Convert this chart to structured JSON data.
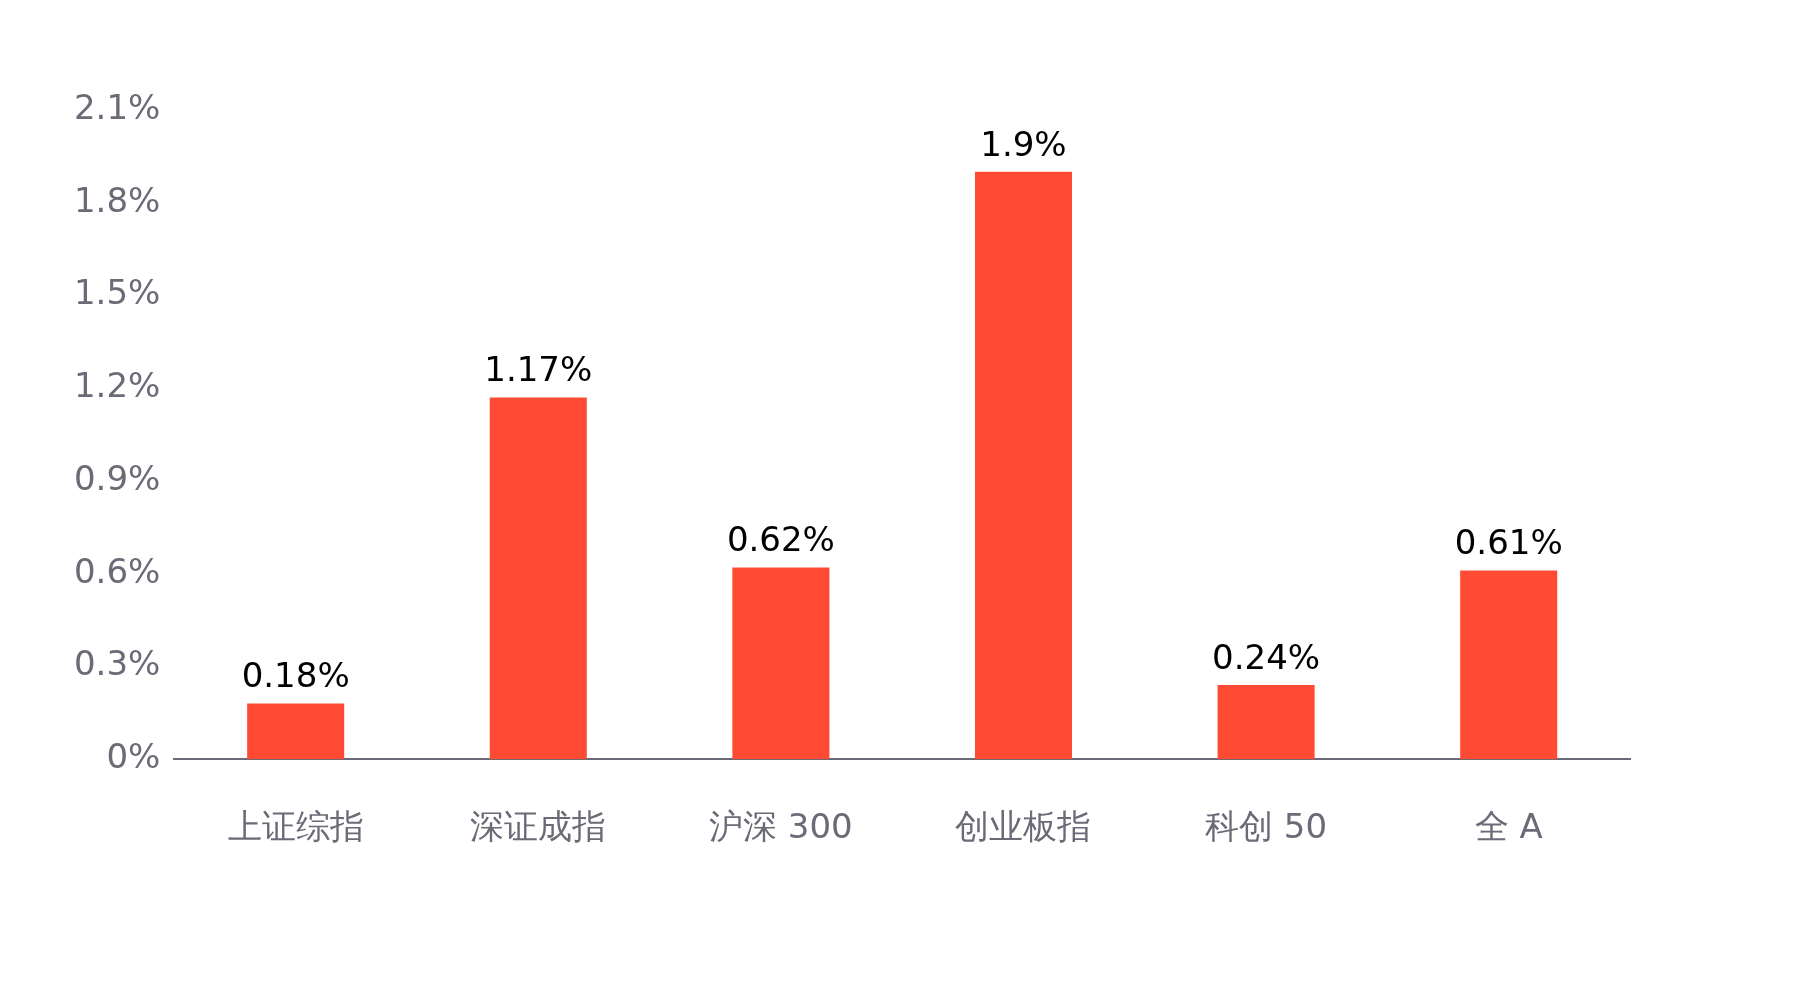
{
  "chart_data": {
    "type": "bar",
    "categories": [
      "上证综指",
      "深证成指",
      "沪深 300",
      "创业板指",
      "科创 50",
      "全 A"
    ],
    "values": [
      0.18,
      1.17,
      0.62,
      1.9,
      0.24,
      0.61
    ],
    "value_labels": [
      "0.18%",
      "1.17%",
      "0.62%",
      "1.9%",
      "0.24%",
      "0.61%"
    ],
    "color": "#ff4b33",
    "ylim": [
      0,
      2.1
    ],
    "yticks": [
      {
        "value": 0,
        "label": "0%"
      },
      {
        "value": 0.3,
        "label": "0.3%"
      },
      {
        "value": 0.6,
        "label": "0.6%"
      },
      {
        "value": 0.9,
        "label": "0.9%"
      },
      {
        "value": 1.2,
        "label": "1.2%"
      },
      {
        "value": 1.5,
        "label": "1.5%"
      },
      {
        "value": 1.8,
        "label": "1.8%"
      },
      {
        "value": 2.1,
        "label": "2.1%"
      }
    ],
    "grid": false,
    "legend": false
  }
}
